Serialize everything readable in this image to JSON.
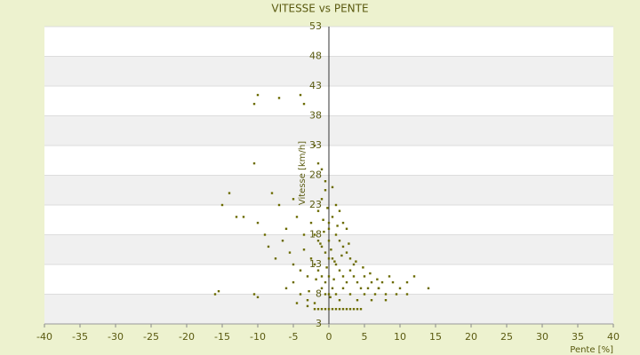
{
  "chart_data": {
    "type": "scatter",
    "title": "VITESSE vs PENTE",
    "x_label": "Pente [%]",
    "y_label": "Vitesse [km/h]",
    "color": "#6b6b00",
    "grid": true,
    "xlim": [
      -40,
      40
    ],
    "xticks": [
      -40,
      -35,
      -30,
      -25,
      -20,
      -15,
      -10,
      -5,
      0,
      5,
      10,
      15,
      20,
      25,
      30,
      35,
      40
    ],
    "ylim": [
      3,
      53
    ],
    "yticks": [
      3,
      8,
      13,
      18,
      23,
      28,
      33,
      38,
      43,
      48,
      53
    ],
    "x": [
      -10,
      -10.5,
      -7,
      -4,
      -3.5,
      -10.5,
      -2,
      -1.5,
      -1,
      -0.5,
      -14,
      -15,
      -13,
      -12,
      -10,
      -16,
      -15.5,
      -10.5,
      -10,
      14,
      12,
      11,
      -8,
      -7,
      -6,
      -5,
      -4.5,
      -9,
      -8.5,
      -7.5,
      -6.5,
      -5.5,
      -5,
      -4,
      -3,
      -3.5,
      -2.5,
      -6,
      -5,
      -4,
      -3,
      -2,
      -1.5,
      -1,
      -0.5,
      0.5,
      1,
      1.5,
      2,
      2.5,
      -2,
      -1.5,
      -1,
      -0.5,
      0,
      0.5,
      1,
      1.5,
      2,
      2.5,
      3,
      3.5,
      -2.5,
      -2,
      -1.5,
      -1,
      -0.5,
      0.5,
      1,
      1.5,
      2,
      2.5,
      3,
      3.5,
      4,
      4.5,
      5,
      -1,
      -0.5,
      0.5,
      1,
      1.5,
      2,
      3,
      4,
      5,
      6,
      7,
      8,
      9,
      10,
      11,
      5.5,
      6.5,
      7.5,
      8.5,
      9.5,
      6,
      7,
      8,
      -2,
      -1.5,
      -1,
      -0.5,
      0,
      0.5,
      1,
      1.5,
      2,
      2.5,
      3,
      3.5,
      4,
      4.5,
      -3,
      0,
      0,
      0,
      0,
      0,
      -0.3,
      0.3,
      -0.7,
      0.7,
      -1.2,
      1.2,
      -0.2,
      0.2,
      0.8,
      -0.8,
      1.8,
      -1.8,
      2.8,
      -2.8,
      3.8,
      4.8,
      5.8,
      6.8,
      -3.5,
      -4.5
    ],
    "values": [
      41.5,
      40,
      41,
      41.5,
      40,
      30,
      33,
      30,
      29,
      27,
      25,
      23,
      21,
      21,
      20,
      8,
      8.5,
      8,
      7.5,
      9,
      11,
      10,
      25,
      23,
      19,
      24,
      21,
      18,
      16,
      14,
      17,
      15,
      13,
      12,
      11,
      18,
      20,
      9,
      10,
      8,
      7,
      6.5,
      22,
      24,
      25.5,
      26,
      23,
      22,
      20,
      19,
      18,
      17,
      16,
      15,
      19,
      21,
      18,
      17,
      16,
      15,
      14,
      13,
      14,
      13,
      12,
      11,
      10,
      14,
      13,
      12,
      11,
      10,
      12,
      11,
      10,
      9,
      8,
      9,
      8,
      9,
      8,
      7,
      9,
      8,
      7,
      11,
      10,
      9,
      8,
      10,
      9,
      8,
      9,
      8,
      10,
      11,
      8,
      7,
      9,
      7,
      5.5,
      5.5,
      5.5,
      5.5,
      5.5,
      5.5,
      5.5,
      5.5,
      5.5,
      5.5,
      5.5,
      5.5,
      5.5,
      5.5,
      6,
      8,
      11,
      14,
      17,
      20,
      12.5,
      15.5,
      18.5,
      10.5,
      16.5,
      19.5,
      22.5,
      7.5,
      13.5,
      20.5,
      14.5,
      10.5,
      16.5,
      8.5,
      13.5,
      12.5,
      11.5,
      10.5,
      15.5,
      6.5
    ]
  }
}
